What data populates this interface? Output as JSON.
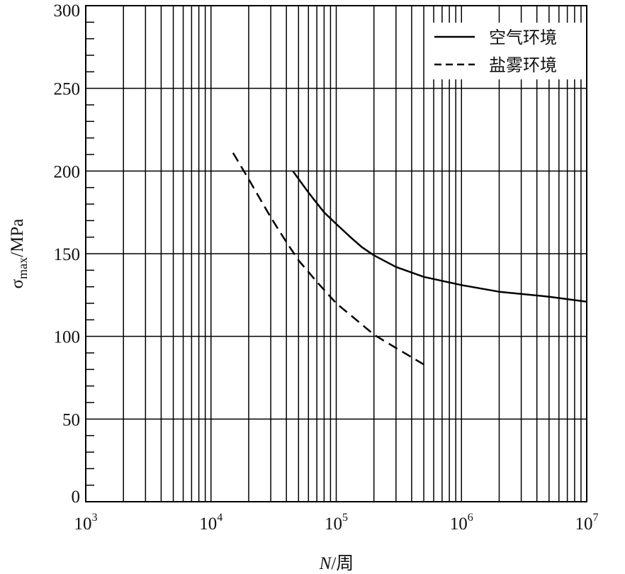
{
  "chart_data": {
    "type": "line",
    "title": "",
    "x_scale": "log",
    "xlim": [
      1000,
      10000000
    ],
    "ylim": [
      0,
      300
    ],
    "y_ticks": [
      "0",
      "50",
      "100",
      "150",
      "200",
      "250",
      "300"
    ],
    "x_ticks": [
      {
        "base": "10",
        "exp": "3"
      },
      {
        "base": "10",
        "exp": "4"
      },
      {
        "base": "10",
        "exp": "5"
      },
      {
        "base": "10",
        "exp": "6"
      },
      {
        "base": "10",
        "exp": "7"
      }
    ],
    "xlabel": {
      "var": "N",
      "rest": "/周"
    },
    "ylabel": {
      "symbol": "σ",
      "sub": "max",
      "rest": "/MPa"
    },
    "grid": true,
    "legend": {
      "position": "top-right"
    },
    "series": [
      {
        "name": "空气环境",
        "style": "solid",
        "color": "#000000",
        "x": [
          45000,
          60000,
          80000,
          100000,
          130000,
          160000,
          200000,
          300000,
          500000,
          1000000,
          2000000,
          5000000,
          10000000
        ],
        "y": [
          200,
          187,
          175,
          168,
          160,
          154,
          149,
          142,
          136,
          131,
          127,
          124,
          121
        ]
      },
      {
        "name": "盐雾环境",
        "style": "dashed",
        "color": "#000000",
        "x": [
          15000,
          20000,
          30000,
          40000,
          50000,
          70000,
          100000,
          150000,
          200000,
          300000,
          500000
        ],
        "y": [
          211,
          195,
          172,
          157,
          146,
          133,
          120,
          109,
          101,
          93,
          83
        ]
      }
    ]
  }
}
